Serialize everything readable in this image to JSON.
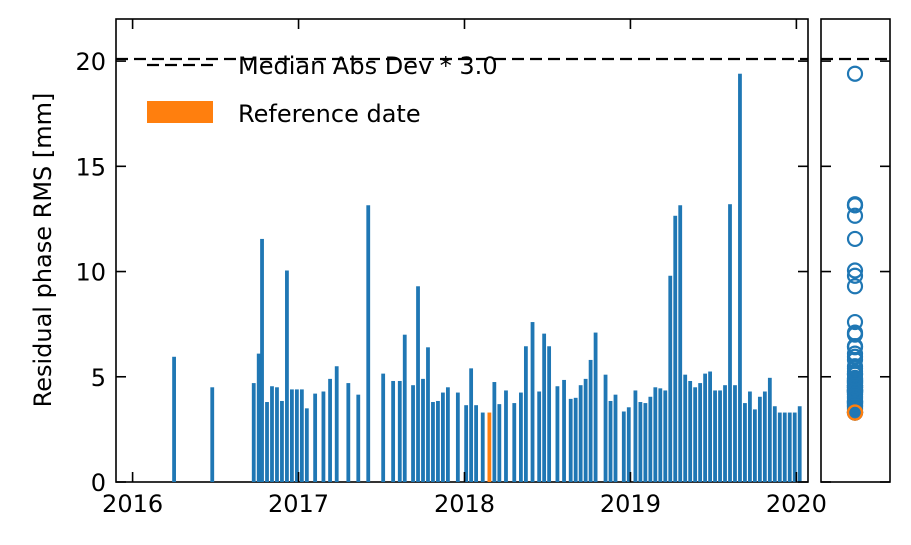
{
  "chart_data": {
    "type": "bar",
    "ylabel": "Residual phase RMS [mm]",
    "xlabel": "",
    "ylim": [
      0,
      22
    ],
    "yticks": [
      0,
      5,
      10,
      15,
      20
    ],
    "xticks": [
      "2016",
      "2017",
      "2018",
      "2019",
      "2020"
    ],
    "xlim": [
      2015.9,
      2020.07
    ],
    "threshold": {
      "label": "Median Abs Dev * 3.0",
      "value": 20.1
    },
    "legend": {
      "placement": "top-left",
      "entries": [
        {
          "label": "Median Abs Dev * 3.0",
          "style": "dashed-line",
          "color": "#000000"
        },
        {
          "label": "Reference date",
          "style": "patch",
          "color": "#ff7f0e"
        }
      ]
    },
    "colors": {
      "bar": "#1f77b4",
      "reference": "#ff7f0e",
      "threshold": "#000000"
    },
    "reference_date": 2018.15,
    "series": [
      {
        "dates": [
          2016.25,
          2016.48,
          2016.73,
          2016.76,
          2016.78,
          2016.81,
          2016.84,
          2016.87,
          2016.9,
          2016.93,
          2016.96,
          2016.99,
          2017.02,
          2017.05,
          2017.1,
          2017.15,
          2017.19,
          2017.23,
          2017.3,
          2017.36,
          2017.42,
          2017.51,
          2017.57,
          2017.61,
          2017.64,
          2017.69,
          2017.72,
          2017.75,
          2017.78,
          2017.81,
          2017.84,
          2017.87,
          2017.9,
          2017.96,
          2018.01,
          2018.04,
          2018.07,
          2018.11,
          2018.15,
          2018.18,
          2018.21,
          2018.25,
          2018.3,
          2018.34,
          2018.37,
          2018.41,
          2018.45,
          2018.48,
          2018.51,
          2018.56,
          2018.6,
          2018.64,
          2018.67,
          2018.7,
          2018.73,
          2018.76,
          2018.79,
          2018.85,
          2018.88,
          2018.91,
          2018.96,
          2018.99,
          2019.03,
          2019.06,
          2019.09,
          2019.12,
          2019.15,
          2019.18,
          2019.21,
          2019.24,
          2019.27,
          2019.3,
          2019.33,
          2019.36,
          2019.39,
          2019.42,
          2019.45,
          2019.48,
          2019.51,
          2019.54,
          2019.57,
          2019.6,
          2019.63,
          2019.66,
          2019.69,
          2019.72,
          2019.75,
          2019.78,
          2019.81,
          2019.84,
          2019.87,
          2019.9,
          2019.93,
          2019.96,
          2019.99,
          2020.02
        ],
        "values": [
          5.95,
          4.5,
          4.7,
          6.1,
          11.55,
          3.8,
          4.55,
          4.5,
          3.85,
          10.05,
          4.4,
          4.4,
          4.4,
          3.5,
          4.2,
          4.3,
          4.9,
          5.5,
          4.7,
          4.15,
          13.15,
          5.15,
          4.8,
          4.8,
          7.0,
          4.6,
          9.3,
          4.9,
          6.4,
          3.8,
          3.85,
          4.25,
          4.5,
          4.25,
          3.65,
          5.4,
          3.65,
          3.3,
          3.3,
          4.75,
          3.7,
          4.35,
          3.75,
          4.25,
          6.45,
          7.6,
          4.3,
          7.05,
          6.45,
          4.55,
          4.85,
          3.95,
          4.0,
          4.6,
          4.9,
          5.8,
          7.1,
          5.1,
          3.85,
          4.15,
          3.35,
          3.55,
          4.35,
          3.8,
          3.75,
          4.05,
          4.5,
          4.45,
          4.35,
          9.8,
          12.65,
          13.15,
          5.1,
          4.8,
          4.5,
          4.7,
          5.15,
          5.25,
          4.35,
          4.35,
          4.6,
          13.2,
          4.6,
          19.4,
          3.75,
          4.3,
          3.45,
          4.05,
          4.3,
          4.95,
          3.6,
          3.3,
          3.3,
          3.3,
          3.3,
          3.6
        ]
      }
    ]
  }
}
